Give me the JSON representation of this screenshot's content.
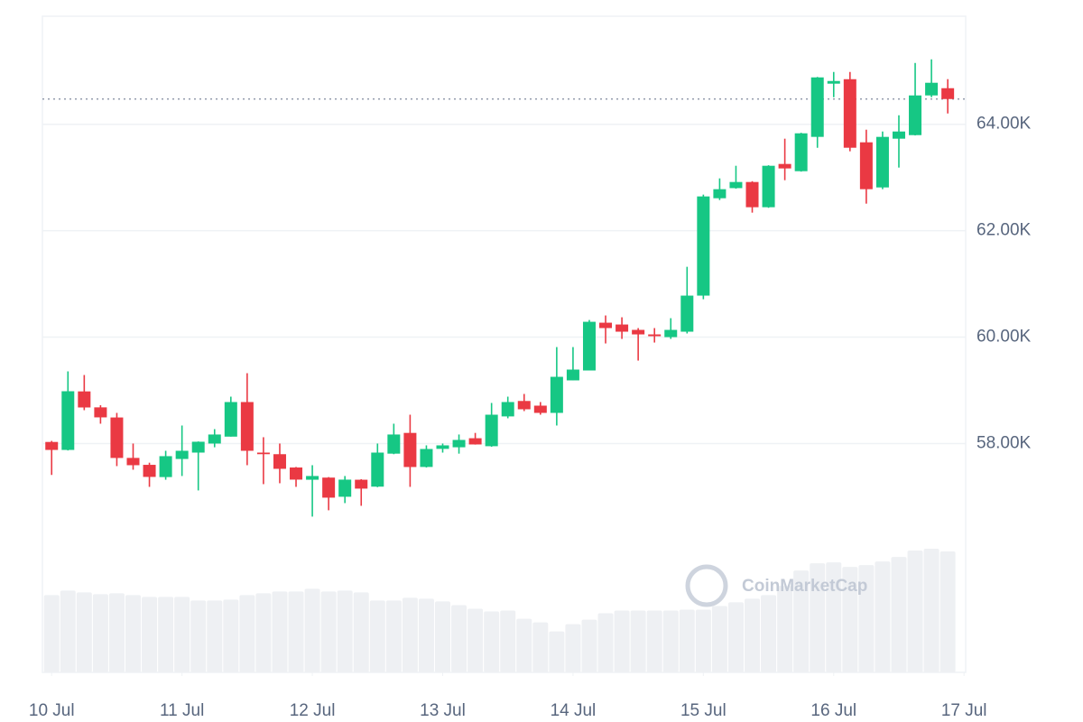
{
  "chart_data": {
    "type": "candlestick",
    "watermark": "CoinMarketCap",
    "x": [
      0,
      3,
      6,
      9,
      12,
      15,
      18,
      21,
      24,
      27,
      30,
      33,
      36,
      39,
      42,
      45,
      48,
      51,
      54,
      57,
      60,
      63,
      66,
      69,
      72,
      75,
      78,
      81,
      84,
      87,
      90,
      93,
      96,
      99,
      102,
      105,
      108,
      111,
      114,
      117,
      120,
      123,
      126,
      129,
      132,
      135,
      138,
      141,
      144,
      147,
      150,
      153,
      156,
      159,
      162,
      165
    ],
    "open": [
      58030,
      57880,
      58980,
      58680,
      58490,
      57730,
      57600,
      57370,
      57710,
      57830,
      58000,
      58130,
      58780,
      57830,
      57800,
      57550,
      57320,
      57360,
      57000,
      57320,
      57190,
      57810,
      58200,
      57560,
      57900,
      57930,
      58100,
      57950,
      58510,
      58800,
      58712,
      58576,
      59187,
      59373,
      60271,
      60237,
      60136,
      60051,
      60000,
      60102,
      60780,
      62610,
      62800,
      62915,
      62441,
      63254,
      63118,
      63763,
      64763,
      64847,
      63661,
      62813,
      63729,
      63796,
      64542,
      64678
    ],
    "high": [
      58050,
      59356,
      59288,
      58720,
      58576,
      58000,
      57640,
      57864,
      58339,
      58040,
      58271,
      58881,
      59322,
      58119,
      58000,
      57560,
      57593,
      57370,
      57390,
      57330,
      58000,
      58373,
      58542,
      57966,
      58000,
      58170,
      58200,
      58763,
      58881,
      58932,
      58780,
      59813,
      59813,
      60322,
      60407,
      60373,
      60170,
      60170,
      60356,
      61322,
      62678,
      62983,
      63220,
      62930,
      63230,
      63729,
      63840,
      64890,
      64983,
      64983,
      63898,
      63864,
      64169,
      65152,
      65220,
      64848
    ],
    "low": [
      57410,
      57870,
      58627,
      58373,
      57576,
      57508,
      57186,
      57320,
      57390,
      57119,
      57930,
      58130,
      57593,
      57237,
      57254,
      57186,
      56627,
      56746,
      56881,
      56830,
      57180,
      57800,
      57186,
      57550,
      57830,
      57810,
      57980,
      57940,
      58475,
      58610,
      58542,
      58339,
      59187,
      59373,
      59881,
      59966,
      59559,
      59898,
      59966,
      60068,
      60712,
      62576,
      62790,
      62339,
      62430,
      62949,
      63110,
      63559,
      64508,
      63492,
      62508,
      62780,
      63186,
      63790,
      64508,
      64203
    ],
    "close": [
      57880,
      58983,
      58678,
      58492,
      57729,
      57593,
      57373,
      57763,
      57864,
      58034,
      58170,
      58780,
      57864,
      57800,
      57525,
      57322,
      57390,
      56983,
      57322,
      57153,
      57830,
      58170,
      57559,
      57898,
      57966,
      58068,
      57983,
      58542,
      58780,
      58644,
      58576,
      59254,
      59390,
      60288,
      60170,
      60102,
      60051,
      60017,
      60136,
      60780,
      62644,
      62780,
      62915,
      62441,
      63220,
      63170,
      63830,
      64881,
      64813,
      63559,
      62780,
      63763,
      63864,
      64542,
      64780,
      64474
    ],
    "volume": [
      85,
      90,
      88,
      86,
      87,
      85,
      83,
      83,
      83,
      79,
      79,
      80,
      85,
      87,
      89,
      89,
      92,
      89,
      90,
      88,
      79,
      79,
      82,
      81,
      78,
      74,
      70,
      67,
      68,
      59,
      55,
      45,
      53,
      58,
      65,
      68,
      68,
      68,
      68,
      69,
      69,
      73,
      77,
      81,
      85,
      95,
      112,
      120,
      121,
      116,
      118,
      122,
      127,
      134,
      136,
      133
    ],
    "up_color": "#16c784",
    "down_color": "#ea3943",
    "volume_color": "#eef0f3",
    "xlim": [
      -1.7,
      168.3
    ],
    "ylim": [
      53700,
      66030
    ],
    "xticks": [
      {
        "value": 0,
        "label": "10 Jul"
      },
      {
        "value": 24,
        "label": "11 Jul"
      },
      {
        "value": 48,
        "label": "12 Jul"
      },
      {
        "value": 72,
        "label": "13 Jul"
      },
      {
        "value": 96,
        "label": "14 Jul"
      },
      {
        "value": 120,
        "label": "15 Jul"
      },
      {
        "value": 144,
        "label": "16 Jul"
      },
      {
        "value": 168,
        "label": "17 Jul"
      }
    ],
    "yticks": [
      {
        "value": 58000,
        "label": "58.00K"
      },
      {
        "value": 60000,
        "label": "60.00K"
      },
      {
        "value": 62000,
        "label": "62.00K"
      },
      {
        "value": 64000,
        "label": "64.00K"
      }
    ],
    "grid": true
  }
}
